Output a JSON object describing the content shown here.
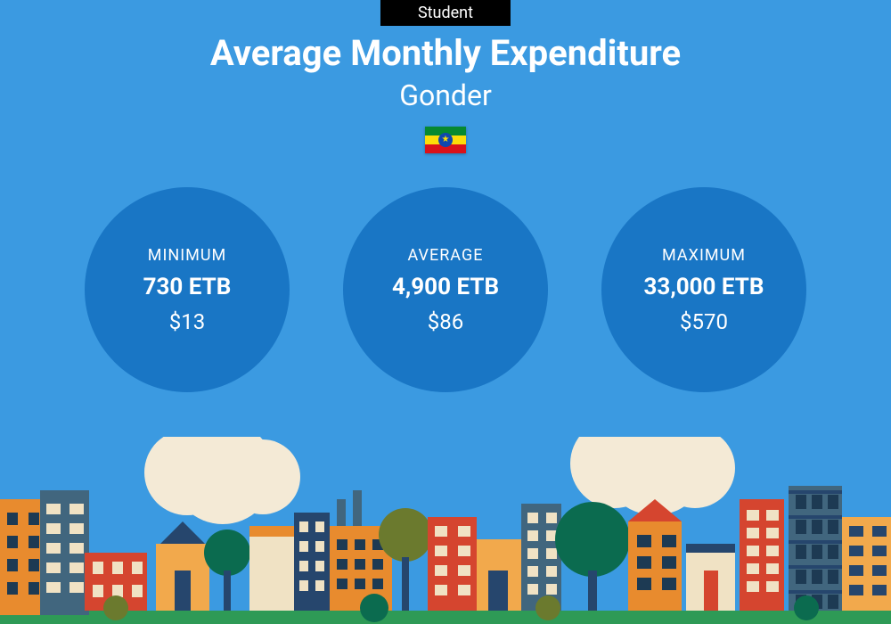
{
  "type": "infographic",
  "background_color": "#3b9ae1",
  "badge": {
    "text": "Student",
    "bg": "#000000",
    "color": "#ffffff"
  },
  "title": {
    "text": "Average Monthly Expenditure",
    "color": "#ffffff",
    "fontsize": 40,
    "weight": 700
  },
  "subtitle": {
    "text": "Gonder",
    "color": "#ffffff",
    "fontsize": 32
  },
  "flag": {
    "country": "Ethiopia",
    "stripes": [
      "#078930",
      "#fcdd09",
      "#da121a"
    ],
    "disc": "#0f47af",
    "star": "#fcdd09"
  },
  "circles": {
    "bg": "#1976c5",
    "text_color": "#ffffff",
    "diameter": 230,
    "items": [
      {
        "label": "MINIMUM",
        "primary": "730 ETB",
        "secondary": "$13"
      },
      {
        "label": "AVERAGE",
        "primary": "4,900 ETB",
        "secondary": "$86"
      },
      {
        "label": "MAXIMUM",
        "primary": "33,000 ETB",
        "secondary": "$570"
      }
    ]
  },
  "city_illustration": {
    "ground": "#2e9a56",
    "cloud": "#f4ead6",
    "tree_dark": "#0b6b4f",
    "tree_olive": "#6b7a2e",
    "orange": "#e88b2e",
    "orange_light": "#f2a94c",
    "red": "#d5452f",
    "navy": "#26466d",
    "slate": "#41667e",
    "cream": "#f0e2c4",
    "window_dark": "#1d3a53",
    "window_light": "#f4ead6"
  }
}
